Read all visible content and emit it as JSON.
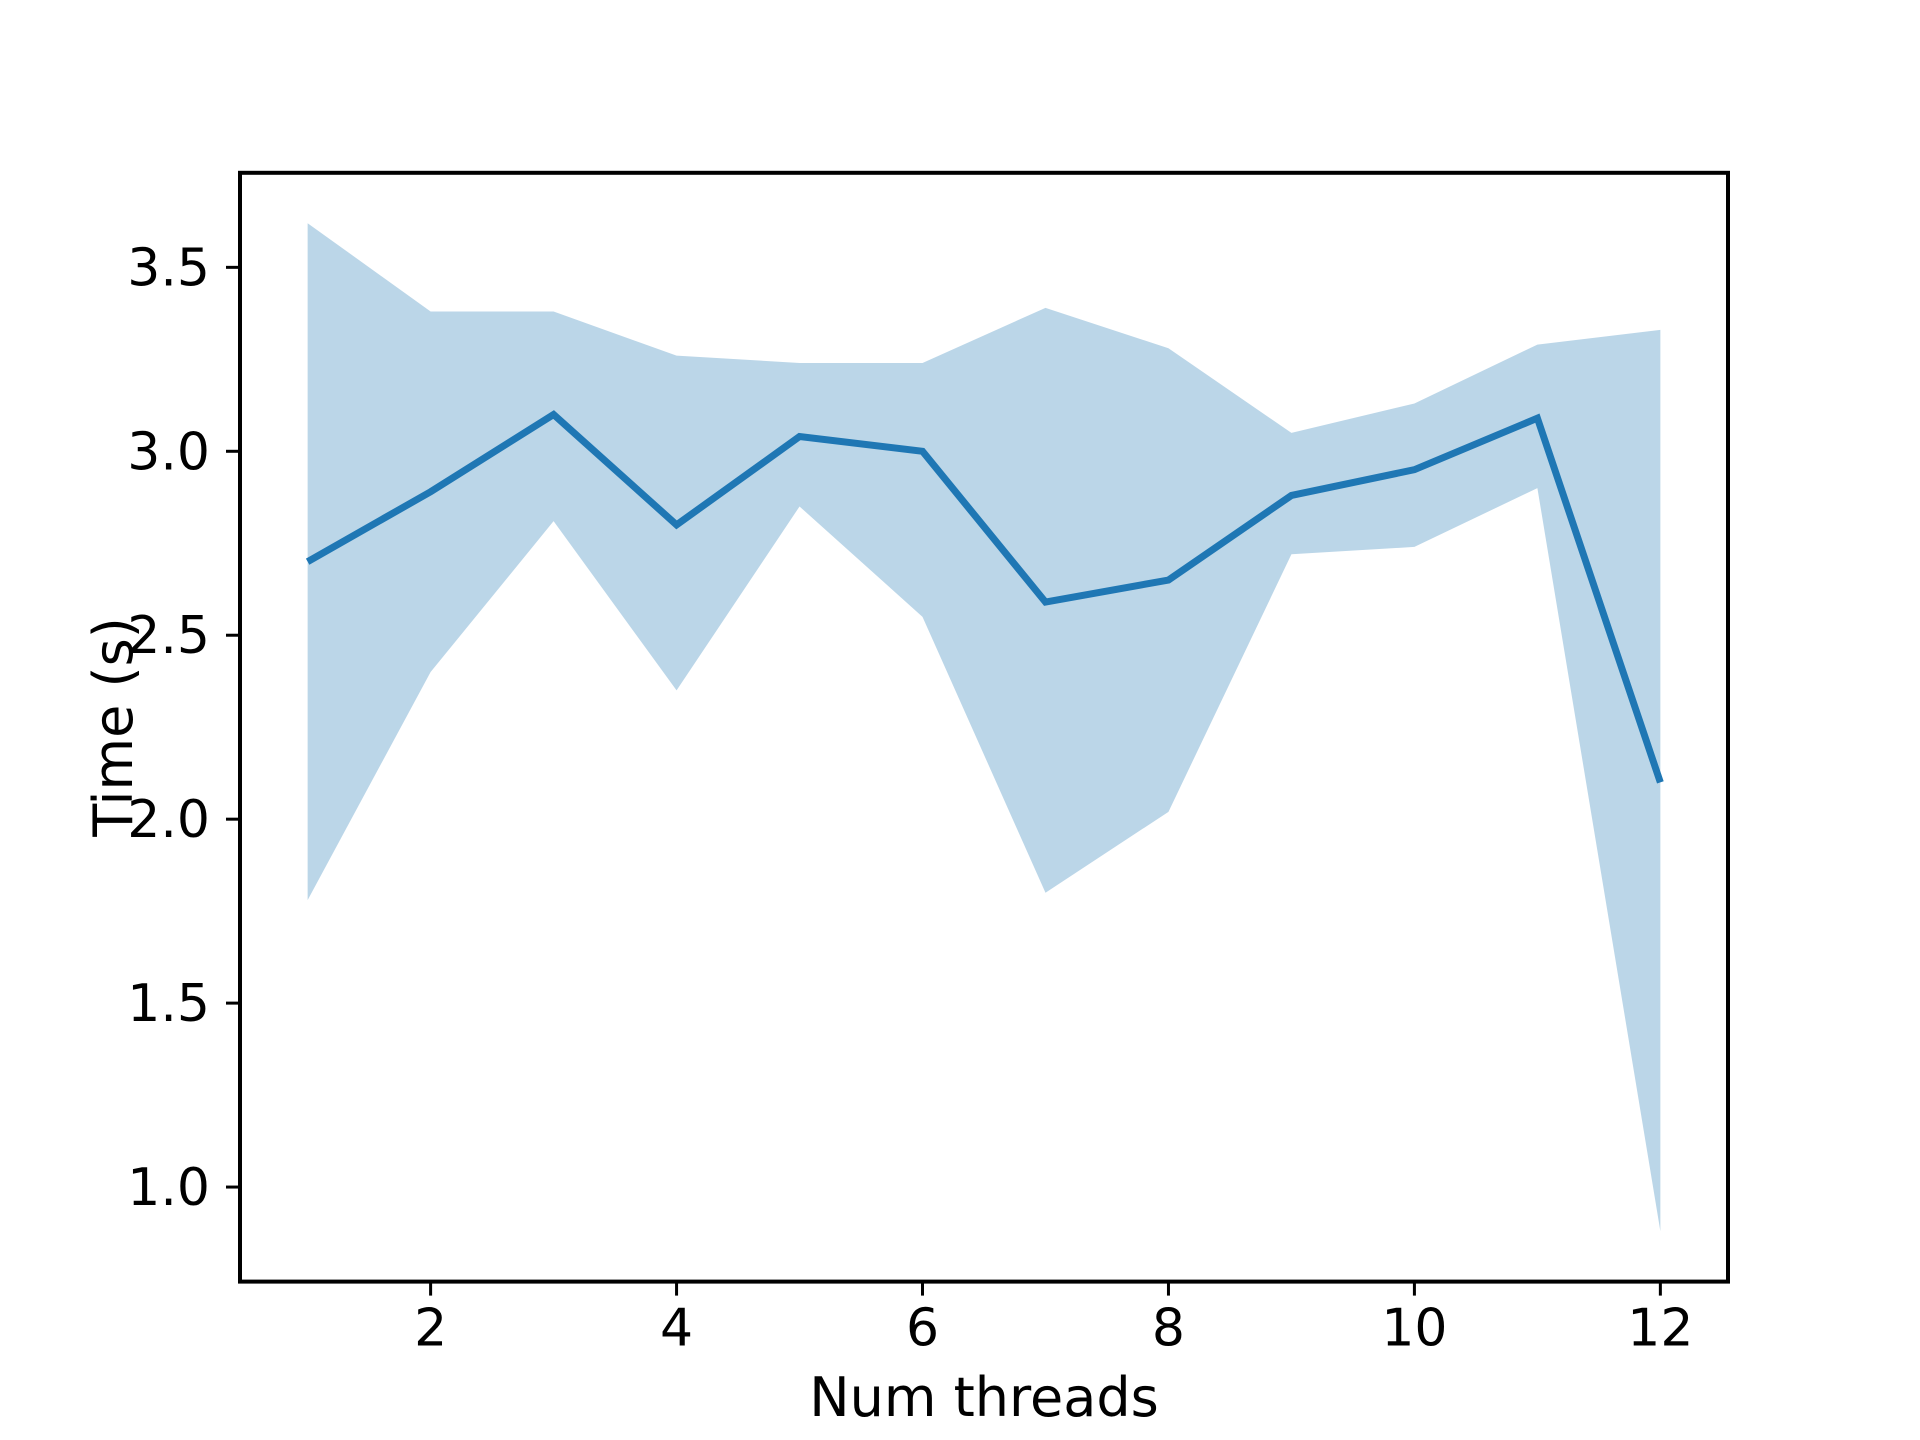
{
  "chart_data": {
    "type": "line",
    "x": [
      1,
      2,
      3,
      4,
      5,
      6,
      7,
      8,
      9,
      10,
      11,
      12
    ],
    "series": [
      {
        "name": "mean-time-line",
        "values": [
          2.7,
          2.89,
          3.1,
          2.8,
          3.04,
          3.0,
          2.59,
          2.65,
          2.88,
          2.95,
          3.09,
          2.1
        ]
      }
    ],
    "band": {
      "name": "time-range-band",
      "upper": [
        3.62,
        3.38,
        3.38,
        3.26,
        3.24,
        3.24,
        3.39,
        3.28,
        3.05,
        3.13,
        3.29,
        3.33
      ],
      "lower": [
        1.78,
        2.4,
        2.81,
        2.35,
        2.85,
        2.55,
        1.8,
        2.02,
        2.72,
        2.74,
        2.9,
        0.88
      ]
    },
    "title": "",
    "xlabel": "Num threads",
    "ylabel": "Time (s)",
    "xticks": [
      2,
      4,
      6,
      8,
      10,
      12
    ],
    "xtick_labels": [
      "2",
      "4",
      "6",
      "8",
      "10",
      "12"
    ],
    "yticks": [
      1.0,
      1.5,
      2.0,
      2.5,
      3.0,
      3.5
    ],
    "ytick_labels": [
      "1.0",
      "1.5",
      "2.0",
      "2.5",
      "3.0",
      "3.5"
    ],
    "xlim": [
      0.45,
      12.55
    ],
    "ylim": [
      0.743,
      3.757
    ],
    "grid": false,
    "legend": "none",
    "line_color": "#1f77b4",
    "band_color": "rgba(31,119,180,0.3)",
    "axis_color": "#000000",
    "background_color": "#ffffff"
  }
}
